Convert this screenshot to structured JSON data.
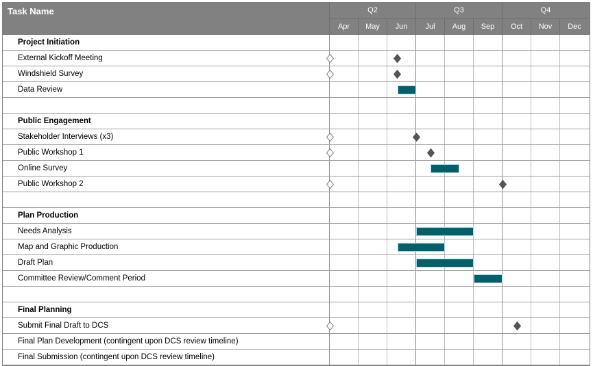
{
  "header": {
    "task_col_label": "Task Name",
    "quarters": [
      {
        "label": "Q2"
      },
      {
        "label": "Q3"
      },
      {
        "label": "Q4"
      }
    ],
    "months": [
      "Apr",
      "May",
      "Jun",
      "Jul",
      "Aug",
      "Sep",
      "Oct",
      "Nov",
      "Dec"
    ]
  },
  "icons": {
    "milestone": "filled-diamond",
    "pending_milestone": "hollow-diamond"
  },
  "colors": {
    "header_bg": "#818181",
    "header_text": "#ffffff",
    "header_divider": "#6e6e6e",
    "row_line": "#9e9e9e",
    "month_gridline": "#bababa",
    "quarter_gridline": "#8c8c8c",
    "outer_border": "#7f7f7f",
    "bar_fill": "#055f69",
    "bar_border": "#a5d8ec",
    "milestone_fill": "#545454",
    "pending_milestone_stroke": "#808080",
    "task_text": "#000000"
  },
  "chart_data": {
    "type": "gantt",
    "title": "Task Name",
    "x_axis": {
      "months": [
        "Apr",
        "May",
        "Jun",
        "Jul",
        "Aug",
        "Sep",
        "Oct",
        "Nov",
        "Dec"
      ],
      "quarters": [
        {
          "label": "Q2",
          "months": [
            "Apr",
            "May",
            "Jun"
          ]
        },
        {
          "label": "Q3",
          "months": [
            "Jul",
            "Aug",
            "Sep"
          ]
        },
        {
          "label": "Q4",
          "months": [
            "Oct",
            "Nov",
            "Dec"
          ]
        }
      ],
      "unit_note": "positions in month units, Apr = 0, Dec end = 9"
    },
    "rows": [
      {
        "type": "section",
        "label": "Project Initiation"
      },
      {
        "type": "task",
        "label": "External Kickoff Meeting",
        "pending_milestone": true,
        "milestone": 2.35
      },
      {
        "type": "task",
        "label": "Windshield Survey",
        "pending_milestone": true,
        "milestone": 2.35
      },
      {
        "type": "task",
        "label": "Data Review",
        "bar": {
          "start": 2.35,
          "end": 3.0
        }
      },
      {
        "type": "empty",
        "label": ""
      },
      {
        "type": "section",
        "label": "Public Engagement"
      },
      {
        "type": "task",
        "label": "Stakeholder Interviews (x3)",
        "pending_milestone": true,
        "milestone": 3.0
      },
      {
        "type": "task",
        "label": "Public Workshop 1",
        "pending_milestone": true,
        "milestone": 3.5
      },
      {
        "type": "task",
        "label": "Online Survey",
        "bar": {
          "start": 3.5,
          "end": 4.5
        }
      },
      {
        "type": "task",
        "label": "Public Workshop 2",
        "pending_milestone": true,
        "milestone": 6.0
      },
      {
        "type": "empty",
        "label": ""
      },
      {
        "type": "section",
        "label": "Plan Production"
      },
      {
        "type": "task",
        "label": "Needs Analysis",
        "bar": {
          "start": 3.0,
          "end": 5.0
        }
      },
      {
        "type": "task",
        "label": "Map and Graphic Production",
        "bar": {
          "start": 2.35,
          "end": 4.0
        }
      },
      {
        "type": "task",
        "label": "Draft Plan",
        "bar": {
          "start": 3.0,
          "end": 5.0
        }
      },
      {
        "type": "task",
        "label": "Committee Review/Comment Period",
        "bar": {
          "start": 5.0,
          "end": 6.0
        }
      },
      {
        "type": "empty",
        "label": ""
      },
      {
        "type": "section",
        "label": "Final Planning"
      },
      {
        "type": "task",
        "label": "Submit Final Draft to DCS",
        "pending_milestone": true,
        "milestone": 6.5
      },
      {
        "type": "task",
        "label": "Final Plan Development (contingent upon DCS review timeline)"
      },
      {
        "type": "task",
        "label": "Final Submission (contingent upon DCS review timeline)"
      }
    ]
  }
}
